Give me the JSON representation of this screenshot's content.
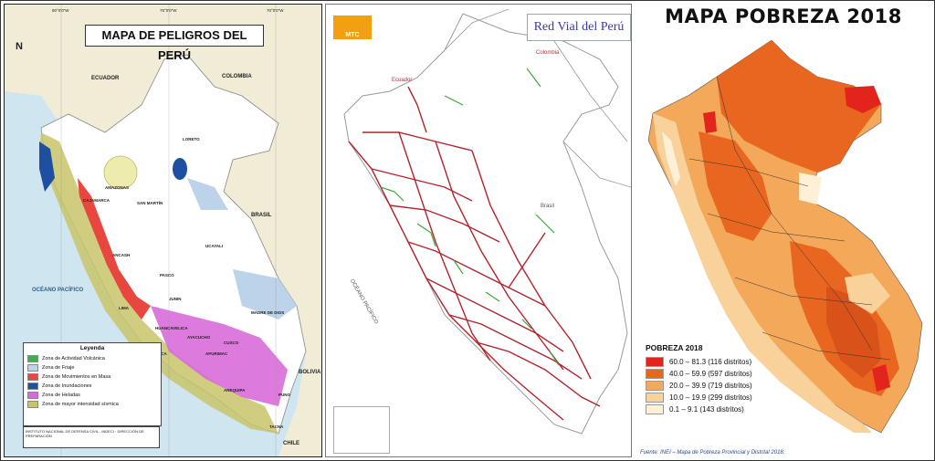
{
  "panel_hazards": {
    "title": "MAPA DE PELIGROS DEL PERÚ",
    "labels": {
      "ecuador": "ECUADOR",
      "colombia": "COLOMBIA",
      "brasil": "BRASIL",
      "bolivia": "BOLIVIA",
      "chile": "CHILE",
      "ocean": "OCÉANO PACÍFICO",
      "loreto": "LORETO",
      "ucayali": "UCAYALI",
      "amazonas": "AMAZONAS",
      "san_martin": "SAN MARTÍN",
      "cajamarca": "CAJAMARCA",
      "ancash": "ANCASH",
      "pasco": "PASCO",
      "lima": "LIMA",
      "junin": "JUNIN",
      "madre_de_dios": "MADRE DE DIOS",
      "cusco": "CUSCO",
      "arequipa": "AREQUIPA",
      "puno": "PUNO",
      "tacna": "TACNA",
      "ica": "ICA",
      "apurimac": "APURIMAC",
      "ayacucho": "AYACUCHO",
      "huancavelica": "HUANCAVELICA"
    },
    "legend_title": "Leyenda",
    "legend_items": [
      {
        "label": "Zona de Actividad Volcánica",
        "color": "#3cb34a"
      },
      {
        "label": "Zona de Friaje",
        "color": "#bcd3ea"
      },
      {
        "label": "Zona de Movimientos en Masa",
        "color": "#e8473f"
      },
      {
        "label": "Zona de Inundaciones",
        "color": "#1f4fa0"
      },
      {
        "label": "Zona de Heladas",
        "color": "#d96bd9"
      },
      {
        "label": "Zona de mayor intensidad sísmica",
        "color": "#c9c46a"
      }
    ],
    "credit": "INSTITUTO NACIONAL DE DEFENSA CIVIL - INDECI · DIRECCIÓN DE PREPARACIÓN",
    "scale_labels": [
      "80°0'0\"W",
      "75°0'0\"W",
      "70°0'0\"W"
    ],
    "north": "N"
  },
  "panel_roads": {
    "title": "Red Vial del Perú",
    "logo_text": "MTC",
    "labels": {
      "ecuador": "Ecuador",
      "colombia": "Colombia",
      "brasil": "Brasil",
      "ocean": "OCÉANO PACÍFICO"
    }
  },
  "panel_poverty": {
    "title": "MAPA POBREZA 2018",
    "legend_title": "POBREZA 2018",
    "legend_items": [
      {
        "label": "60.0 – 81.3 (116 distritos)",
        "color": "#e2241d"
      },
      {
        "label": "40.0 – 59.9 (597 distritos)",
        "color": "#e8661f"
      },
      {
        "label": "20.0 – 39.9 (719 distritos)",
        "color": "#f3a85a"
      },
      {
        "label": "10.0 – 19.9 (299 distritos)",
        "color": "#f8d29a"
      },
      {
        "label": "0.1 – 9.1 (143 distritos)",
        "color": "#fdf0d6"
      }
    ],
    "source": "Fuente: INEI – Mapa de Pobreza Provincial y Distrital 2018."
  }
}
